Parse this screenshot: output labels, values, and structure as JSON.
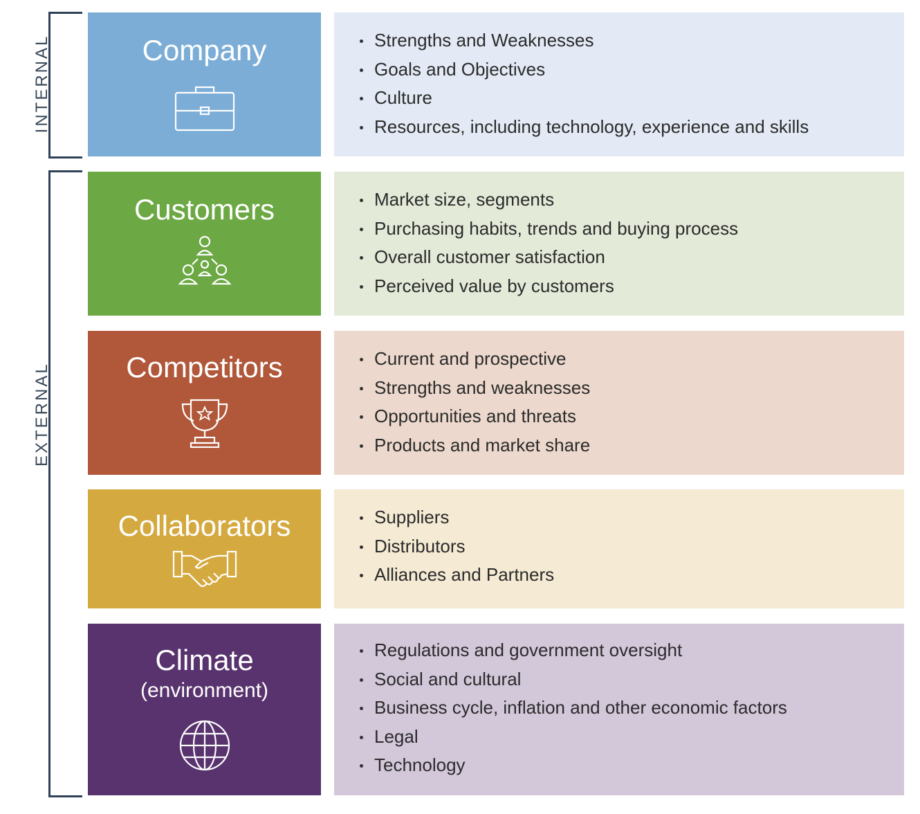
{
  "groups": {
    "internal": "INTERNAL",
    "external": "EXTERNAL"
  },
  "rows": [
    {
      "title": "Company",
      "icon": "briefcase-icon",
      "color": "#7badd6",
      "panel_color": "#e3eaf5",
      "items": [
        "Strengths and Weaknesses",
        "Goals and Objectives",
        "Culture",
        "Resources, including technology, experience and skills"
      ]
    },
    {
      "title": "Customers",
      "icon": "people-network-icon",
      "color": "#6ca844",
      "panel_color": "#e3ead8",
      "items": [
        "Market size, segments",
        "Purchasing habits, trends and buying process",
        "Overall customer satisfaction",
        "Perceived value by customers"
      ]
    },
    {
      "title": "Competitors",
      "icon": "trophy-icon",
      "color": "#b1573a",
      "panel_color": "#ecd8cc",
      "items": [
        "Current and prospective",
        "Strengths and weaknesses",
        "Opportunities and threats",
        "Products and market share"
      ]
    },
    {
      "title": "Collaborators",
      "icon": "handshake-icon",
      "color": "#d4a93f",
      "panel_color": "#f5ead3",
      "items": [
        "Suppliers",
        "Distributors",
        "Alliances and Partners"
      ]
    },
    {
      "title": "Climate",
      "subtitle": "(environment)",
      "icon": "globe-icon",
      "color": "#58336e",
      "panel_color": "#d3c7da",
      "items": [
        "Regulations and government oversight",
        "Social and cultural",
        "Business cycle, inflation and other economic factors",
        "Legal",
        "Technology"
      ]
    }
  ]
}
